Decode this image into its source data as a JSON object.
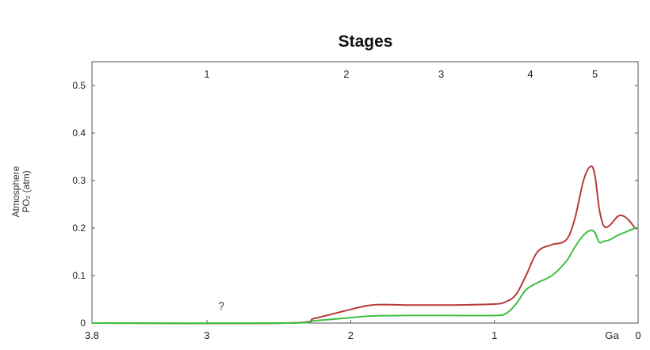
{
  "chart_data": {
    "type": "line",
    "title": "Stages",
    "ylabel_line1": "Atmosphere",
    "ylabel_line2": "PO₂ (atm)",
    "x_unit": "Ga",
    "xlim": [
      3.8,
      0
    ],
    "ylim": [
      0,
      0.55
    ],
    "x_ticks": [
      {
        "value": 3.8,
        "label": "3.8"
      },
      {
        "value": 3,
        "label": "3"
      },
      {
        "value": 2,
        "label": "2"
      },
      {
        "value": 1,
        "label": "1"
      },
      {
        "value": 0,
        "label": "0"
      }
    ],
    "y_ticks": [
      {
        "value": 0,
        "label": "0"
      },
      {
        "value": 0.1,
        "label": "0.1"
      },
      {
        "value": 0.2,
        "label": "0.2"
      },
      {
        "value": 0.3,
        "label": "0.3"
      },
      {
        "value": 0.4,
        "label": "0.4"
      },
      {
        "value": 0.5,
        "label": "0.5"
      }
    ],
    "stages": [
      {
        "label": "1",
        "x": 3.0
      },
      {
        "label": "2",
        "x": 2.03
      },
      {
        "label": "3",
        "x": 1.37
      },
      {
        "label": "4",
        "x": 0.75
      },
      {
        "label": "5",
        "x": 0.3
      }
    ],
    "annotations": [
      {
        "text": "?",
        "x": 2.9,
        "y": 0.035
      }
    ],
    "series": [
      {
        "color": "#b83a3a",
        "x": [
          3.8,
          2.45,
          2.25,
          2.05,
          1.85,
          1.6,
          1.3,
          1.0,
          0.92,
          0.85,
          0.78,
          0.7,
          0.6,
          0.5,
          0.44,
          0.38,
          0.33,
          0.3,
          0.27,
          0.24,
          0.2,
          0.14,
          0.1,
          0.06,
          0.02,
          0.0
        ],
        "y": [
          0,
          0,
          0.01,
          0.025,
          0.038,
          0.038,
          0.038,
          0.04,
          0.045,
          0.06,
          0.1,
          0.15,
          0.165,
          0.175,
          0.22,
          0.3,
          0.33,
          0.31,
          0.24,
          0.205,
          0.205,
          0.225,
          0.225,
          0.215,
          0.2,
          0.2
        ]
      },
      {
        "color": "#3fbf3f",
        "x": [
          3.8,
          2.45,
          2.25,
          2.05,
          1.85,
          1.6,
          1.3,
          1.0,
          0.92,
          0.85,
          0.78,
          0.7,
          0.6,
          0.5,
          0.44,
          0.38,
          0.33,
          0.3,
          0.27,
          0.24,
          0.2,
          0.14,
          0.1,
          0.06,
          0.02,
          0.0
        ],
        "y": [
          0,
          0,
          0.005,
          0.01,
          0.015,
          0.016,
          0.016,
          0.016,
          0.02,
          0.04,
          0.07,
          0.085,
          0.1,
          0.13,
          0.16,
          0.185,
          0.195,
          0.19,
          0.17,
          0.172,
          0.175,
          0.185,
          0.19,
          0.195,
          0.2,
          0.2
        ]
      }
    ]
  }
}
